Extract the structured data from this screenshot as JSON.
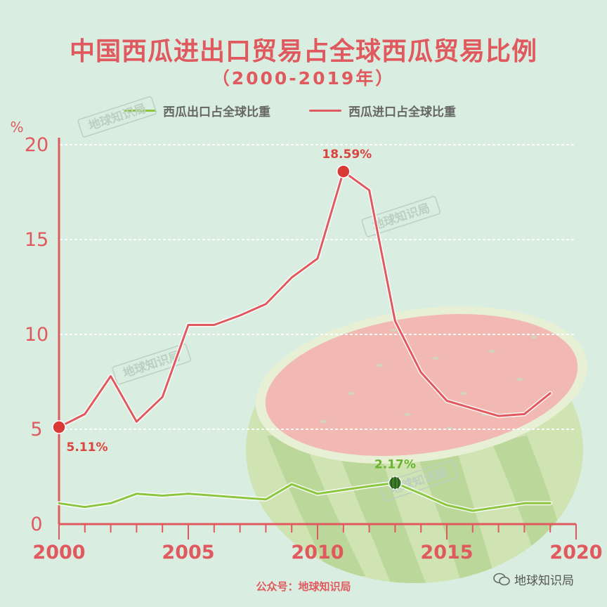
{
  "header": {
    "title": "中国西瓜进出口贸易占全球西瓜贸易比例",
    "subtitle": "（2000-2019年）"
  },
  "legend": {
    "export_label": "西瓜出口占全球比重",
    "import_label": "西瓜进口占全球比重"
  },
  "colors": {
    "export": "#8cc63f",
    "import": "#e0595e",
    "axis": "#e0595e",
    "background": "#d9eee0"
  },
  "watermark_text": "地球知识局",
  "footer": {
    "source": "公众号：地球知识局",
    "wechat_label": "地球知识局"
  },
  "chart_data": {
    "type": "line",
    "ylabel": "%",
    "xlim": [
      2000,
      2020
    ],
    "ylim": [
      0,
      20
    ],
    "xticks": [
      "2000",
      "2005",
      "2010",
      "2015",
      "2020"
    ],
    "yticks": [
      "0",
      "5",
      "10",
      "15",
      "20"
    ],
    "grid": "horizontal dotted",
    "x": [
      2000,
      2001,
      2002,
      2003,
      2004,
      2005,
      2006,
      2007,
      2008,
      2009,
      2010,
      2011,
      2012,
      2013,
      2014,
      2015,
      2016,
      2017,
      2018,
      2019
    ],
    "series": [
      {
        "name": "西瓜进口占全球比重",
        "values": [
          5.11,
          5.8,
          7.8,
          5.4,
          6.7,
          10.5,
          10.5,
          11.0,
          11.6,
          13.0,
          14.0,
          18.59,
          17.6,
          10.7,
          8.0,
          6.5,
          6.1,
          5.7,
          5.8,
          6.9
        ]
      },
      {
        "name": "西瓜出口占全球比重",
        "values": [
          1.1,
          0.9,
          1.1,
          1.6,
          1.5,
          1.6,
          1.5,
          1.4,
          1.3,
          2.1,
          1.6,
          1.8,
          2.0,
          2.17,
          1.6,
          1.0,
          0.7,
          0.9,
          1.1,
          1.1
        ]
      }
    ],
    "annotations": [
      {
        "series": 0,
        "x": 2000,
        "y": 5.11,
        "label": "5.11%"
      },
      {
        "series": 0,
        "x": 2011,
        "y": 18.59,
        "label": "18.59%"
      },
      {
        "series": 1,
        "x": 2013,
        "y": 2.17,
        "label": "2.17%"
      }
    ]
  }
}
